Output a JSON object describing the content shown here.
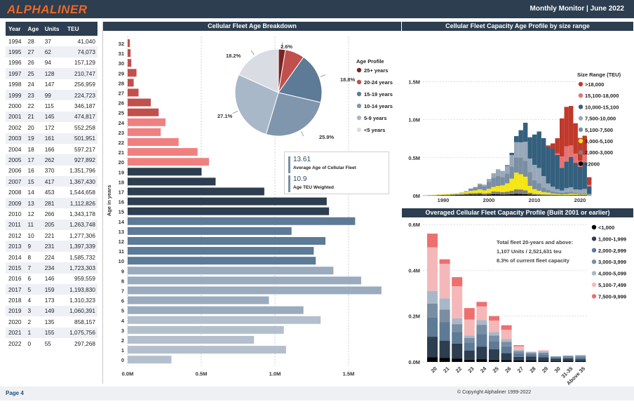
{
  "header": {
    "logo": "ALPHALINER",
    "right_text": "Monthly Monitor | June 2022"
  },
  "footer": {
    "page": "Page 4",
    "copyright": "© Copyright Alphaliner 1999-2022"
  },
  "table": {
    "columns": [
      "Year",
      "Age",
      "Units",
      "TEU"
    ],
    "rows": [
      [
        "1994",
        "28",
        "37",
        "41,040"
      ],
      [
        "1995",
        "27",
        "62",
        "74,073"
      ],
      [
        "1996",
        "26",
        "94",
        "157,129"
      ],
      [
        "1997",
        "25",
        "128",
        "210,747"
      ],
      [
        "1998",
        "24",
        "147",
        "256,959"
      ],
      [
        "1999",
        "23",
        "99",
        "224,723"
      ],
      [
        "2000",
        "22",
        "115",
        "346,187"
      ],
      [
        "2001",
        "21",
        "145",
        "474,817"
      ],
      [
        "2002",
        "20",
        "172",
        "552,258"
      ],
      [
        "2003",
        "19",
        "161",
        "501,951"
      ],
      [
        "2004",
        "18",
        "166",
        "597,217"
      ],
      [
        "2005",
        "17",
        "262",
        "927,892"
      ],
      [
        "2006",
        "16",
        "370",
        "1,351,796"
      ],
      [
        "2007",
        "15",
        "417",
        "1,367,430"
      ],
      [
        "2008",
        "14",
        "453",
        "1,544,658"
      ],
      [
        "2009",
        "13",
        "281",
        "1,112,826"
      ],
      [
        "2010",
        "12",
        "266",
        "1,343,178"
      ],
      [
        "2011",
        "11",
        "205",
        "1,263,748"
      ],
      [
        "2012",
        "10",
        "221",
        "1,277,306"
      ],
      [
        "2013",
        "9",
        "231",
        "1,397,339"
      ],
      [
        "2014",
        "8",
        "224",
        "1,585,732"
      ],
      [
        "2015",
        "7",
        "234",
        "1,723,303"
      ],
      [
        "2016",
        "6",
        "146",
        "959,559"
      ],
      [
        "2017",
        "5",
        "159",
        "1,193,830"
      ],
      [
        "2018",
        "4",
        "173",
        "1,310,323"
      ],
      [
        "2019",
        "3",
        "149",
        "1,060,391"
      ],
      [
        "2020",
        "2",
        "135",
        "858,157"
      ],
      [
        "2021",
        "1",
        "155",
        "1,075,756"
      ],
      [
        "2022",
        "0",
        "55",
        "297,268"
      ]
    ]
  },
  "age_panel": {
    "title": "Cellular Fleet Age Breakdown",
    "ylabel": "Age in years",
    "avg_age_value": "13.61",
    "avg_age_label": "Average Age of Cellular Fleet",
    "avg_teu_value": "10.9",
    "avg_teu_label": "Age TEU Weighted",
    "legend_title": "Age Profile"
  },
  "capacity_panel": {
    "title": "Cellular Fleet Capacity Age Profile by size range",
    "legend_title": "Size Range (TEU)"
  },
  "overaged_panel": {
    "title": "Overaged Cellular Fleet Capacity Profile (Built 2001 or earlier)",
    "annotation": [
      "Total fleet 20-years and above:",
      "1,107 Units / 2,521,631 teu",
      "8.3% of current fleet capacity"
    ]
  },
  "chart_data": [
    {
      "type": "bar",
      "orientation": "horizontal",
      "title": "Cellular Fleet Age Breakdown",
      "ylabel": "Age in years",
      "categories": [
        "0",
        "1",
        "2",
        "3",
        "4",
        "5",
        "6",
        "7",
        "8",
        "9",
        "10",
        "11",
        "12",
        "13",
        "14",
        "15",
        "16",
        "17",
        "18",
        "19",
        "20",
        "21",
        "22",
        "23",
        "24",
        "25",
        "26",
        "27",
        "28",
        "29",
        "30",
        "31",
        "32"
      ],
      "values": [
        297268,
        1075756,
        858157,
        1060391,
        1310323,
        1193830,
        959559,
        1723303,
        1585732,
        1397339,
        1277306,
        1263748,
        1343178,
        1112826,
        1544658,
        1367430,
        1351796,
        927892,
        597217,
        501951,
        552258,
        474817,
        346187,
        224723,
        256959,
        210747,
        157129,
        74073,
        41040,
        60000,
        25000,
        20000,
        15000
      ],
      "colors": {
        "0-4": "#b3bfcc",
        "5-9": "#9aabbd",
        "10-14": "#5d7a96",
        "15-19": "#2c3e50",
        "20-24": "#f08080",
        "25+": "#c0504d"
      },
      "xticks": [
        "0.0M",
        "0.5M",
        "1.0M",
        "1.5M"
      ],
      "xlim": [
        0,
        1800000
      ]
    },
    {
      "type": "pie",
      "title": "Age Profile",
      "labels": [
        "25+ years",
        "20-24 years",
        "15-19 years",
        "10-14 years",
        "5-9 years",
        "<5 years"
      ],
      "values": [
        2.6,
        7.2,
        18.8,
        25.9,
        27.1,
        18.2
      ],
      "data_labels": [
        "2.6%",
        "",
        "18.8%",
        "25.9%",
        "27.1%",
        "18.2%"
      ],
      "colors": [
        "#7b2425",
        "#c0504d",
        "#5d7a96",
        "#8096ad",
        "#a9b8c9",
        "#d9dde3"
      ]
    },
    {
      "type": "bar",
      "stacked": true,
      "title": "Cellular Fleet Capacity Age Profile by size range",
      "x": [
        1986,
        1987,
        1988,
        1989,
        1990,
        1991,
        1992,
        1993,
        1994,
        1995,
        1996,
        1997,
        1998,
        1999,
        2000,
        2001,
        2002,
        2003,
        2004,
        2005,
        2006,
        2007,
        2008,
        2009,
        2010,
        2011,
        2012,
        2013,
        2014,
        2015,
        2016,
        2017,
        2018,
        2019,
        2020,
        2021,
        2022
      ],
      "xticks": [
        "1990",
        "2000",
        "2010",
        "2020"
      ],
      "yticks": [
        "0M",
        "0.5M",
        "1.0M",
        "1.5M"
      ],
      "ylim": [
        0,
        1800000
      ],
      "series": [
        {
          "name": "<2000",
          "color": "#000000",
          "values": [
            2000,
            3000,
            3000,
            4000,
            5000,
            6000,
            8000,
            9000,
            11000,
            13000,
            16000,
            15000,
            17000,
            12000,
            15000,
            20000,
            18000,
            16000,
            17000,
            19000,
            24000,
            22000,
            20000,
            14000,
            10000,
            8000,
            7000,
            6000,
            5000,
            5000,
            4000,
            4000,
            5000,
            5000,
            6000,
            6000,
            3000
          ]
        },
        {
          "name": "2,000-3,000",
          "color": "#7f7f7f",
          "values": [
            2000,
            3000,
            4000,
            5000,
            6000,
            7000,
            9000,
            10000,
            12000,
            14000,
            18000,
            20000,
            22000,
            18000,
            20000,
            35000,
            35000,
            30000,
            35000,
            45000,
            60000,
            60000,
            50000,
            25000,
            15000,
            12000,
            10000,
            10000,
            8000,
            6000,
            5000,
            5000,
            6000,
            6000,
            8000,
            8000,
            3000
          ]
        },
        {
          "name": "3,000-5,100",
          "color": "#f5e614",
          "values": [
            2000,
            3000,
            4000,
            6000,
            8000,
            10000,
            12000,
            16000,
            18000,
            22000,
            30000,
            35000,
            45000,
            40000,
            55000,
            60000,
            75000,
            90000,
            110000,
            160000,
            220000,
            200000,
            180000,
            90000,
            60000,
            45000,
            30000,
            25000,
            15000,
            10000,
            8000,
            10000,
            15000,
            12000,
            10000,
            10000,
            2000
          ]
        },
        {
          "name": "5,100-7,500",
          "color": "#7a8ea3",
          "values": [
            0,
            0,
            0,
            0,
            0,
            0,
            0,
            0,
            3000,
            10000,
            30000,
            40000,
            60000,
            55000,
            90000,
            120000,
            130000,
            110000,
            130000,
            160000,
            200000,
            220000,
            210000,
            180000,
            120000,
            100000,
            60000,
            40000,
            30000,
            25000,
            20000,
            30000,
            25000,
            20000,
            15000,
            15000,
            5000
          ]
        },
        {
          "name": "7,500-10,000",
          "color": "#98a8ba",
          "values": [
            0,
            0,
            0,
            0,
            0,
            0,
            0,
            0,
            0,
            0,
            0,
            5000,
            15000,
            20000,
            40000,
            60000,
            90000,
            80000,
            100000,
            150000,
            200000,
            200000,
            250000,
            180000,
            200000,
            200000,
            150000,
            80000,
            60000,
            40000,
            30000,
            50000,
            60000,
            40000,
            40000,
            50000,
            10000
          ]
        },
        {
          "name": "10,000-15,100",
          "color": "#34607e",
          "values": [
            0,
            0,
            0,
            0,
            0,
            0,
            0,
            0,
            0,
            0,
            0,
            0,
            0,
            0,
            0,
            0,
            0,
            0,
            10000,
            30000,
            80000,
            160000,
            250000,
            280000,
            400000,
            480000,
            500000,
            480000,
            500000,
            450000,
            300000,
            350000,
            400000,
            350000,
            300000,
            350000,
            100000
          ]
        },
        {
          "name": "15,100-18,000",
          "color": "#e57373",
          "values": [
            0,
            0,
            0,
            0,
            0,
            0,
            0,
            0,
            0,
            0,
            0,
            0,
            0,
            0,
            0,
            0,
            0,
            0,
            0,
            0,
            0,
            0,
            0,
            0,
            0,
            0,
            0,
            0,
            0,
            20000,
            150000,
            200000,
            150000,
            120000,
            80000,
            100000,
            20000
          ]
        },
        {
          "name": ">18,000",
          "color": "#c0392b",
          "values": [
            0,
            0,
            0,
            0,
            0,
            0,
            0,
            0,
            0,
            0,
            0,
            0,
            0,
            0,
            0,
            0,
            0,
            0,
            0,
            0,
            0,
            0,
            0,
            0,
            0,
            0,
            0,
            20000,
            70000,
            200000,
            500000,
            520000,
            520000,
            400000,
            300000,
            250000,
            100000
          ]
        }
      ]
    },
    {
      "type": "bar",
      "stacked": true,
      "title": "Overaged Cellular Fleet Capacity Profile (Built 2001 or earlier)",
      "categories": [
        "20",
        "21",
        "22",
        "23",
        "24",
        "25",
        "26",
        "27",
        "28",
        "29",
        "30",
        "31-35",
        "Above 35"
      ],
      "yticks": [
        "0.0M",
        "0.2M",
        "0.4M",
        "0.6M"
      ],
      "ylim": [
        0,
        620000
      ],
      "series": [
        {
          "name": "<1,000",
          "color": "#000000",
          "values": [
            20000,
            18000,
            15000,
            10000,
            12000,
            10000,
            8000,
            7000,
            6000,
            5000,
            4000,
            5000,
            4000
          ]
        },
        {
          "name": "1,000-1,999",
          "color": "#2c3e50",
          "values": [
            90000,
            75000,
            65000,
            40000,
            55000,
            45000,
            30000,
            15000,
            18000,
            15000,
            10000,
            10000,
            8000
          ]
        },
        {
          "name": "2,000-2,999",
          "color": "#5d7a96",
          "values": [
            85000,
            80000,
            50000,
            35000,
            55000,
            35000,
            30000,
            15000,
            10000,
            12000,
            6000,
            6000,
            8000
          ]
        },
        {
          "name": "3,000-3,999",
          "color": "#7a8ea3",
          "values": [
            60000,
            55000,
            35000,
            20000,
            40000,
            25000,
            20000,
            10000,
            6000,
            8000,
            3000,
            5000,
            6000
          ]
        },
        {
          "name": "4,000-5,099",
          "color": "#a9b8c9",
          "values": [
            55000,
            50000,
            25000,
            10000,
            20000,
            15000,
            12000,
            6000,
            3000,
            6000,
            2000,
            2000,
            4000
          ]
        },
        {
          "name": "5,100-7,499",
          "color": "#f4b8b8",
          "values": [
            190000,
            150000,
            140000,
            70000,
            60000,
            50000,
            40000,
            15000,
            2000,
            5000,
            0,
            0,
            0
          ]
        },
        {
          "name": "7,500-9,999",
          "color": "#ee6f6f",
          "values": [
            60000,
            20000,
            40000,
            50000,
            20000,
            20000,
            20000,
            5000,
            0,
            0,
            0,
            0,
            0
          ]
        }
      ]
    }
  ]
}
